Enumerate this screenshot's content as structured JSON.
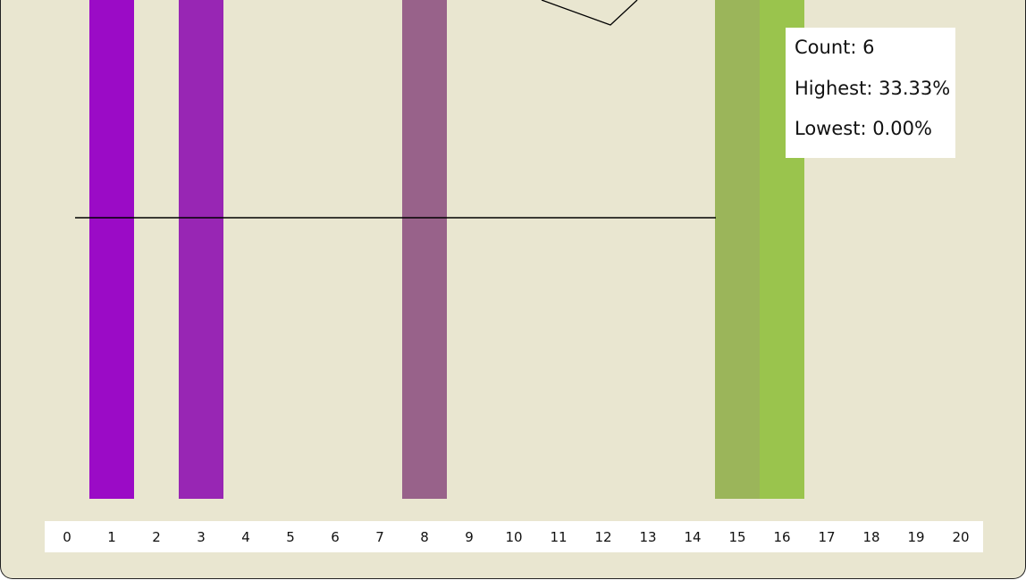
{
  "colors": {
    "background": "#e9e6d0",
    "panel": "#ffffff",
    "baseline": "#000000"
  },
  "stats": {
    "count": "Count: 6",
    "highest": "Highest: 33.33%",
    "lowest": "Lowest: 0.00%"
  },
  "chart_data": {
    "type": "bar",
    "x": [
      0,
      1,
      2,
      3,
      4,
      5,
      6,
      7,
      8,
      9,
      10,
      11,
      12,
      13,
      14,
      15,
      16,
      17,
      18,
      19,
      20
    ],
    "xlim": [
      0,
      20
    ],
    "bars": [
      {
        "x": 1,
        "color": "#9b0bc6"
      },
      {
        "x": 3,
        "color": "#9826b4"
      },
      {
        "x": 8,
        "color": "#98628a"
      },
      {
        "x": 15,
        "color": "#9bb55a"
      },
      {
        "x": 16,
        "color": "#9ac44d"
      }
    ],
    "grid": false,
    "legend": "none"
  }
}
